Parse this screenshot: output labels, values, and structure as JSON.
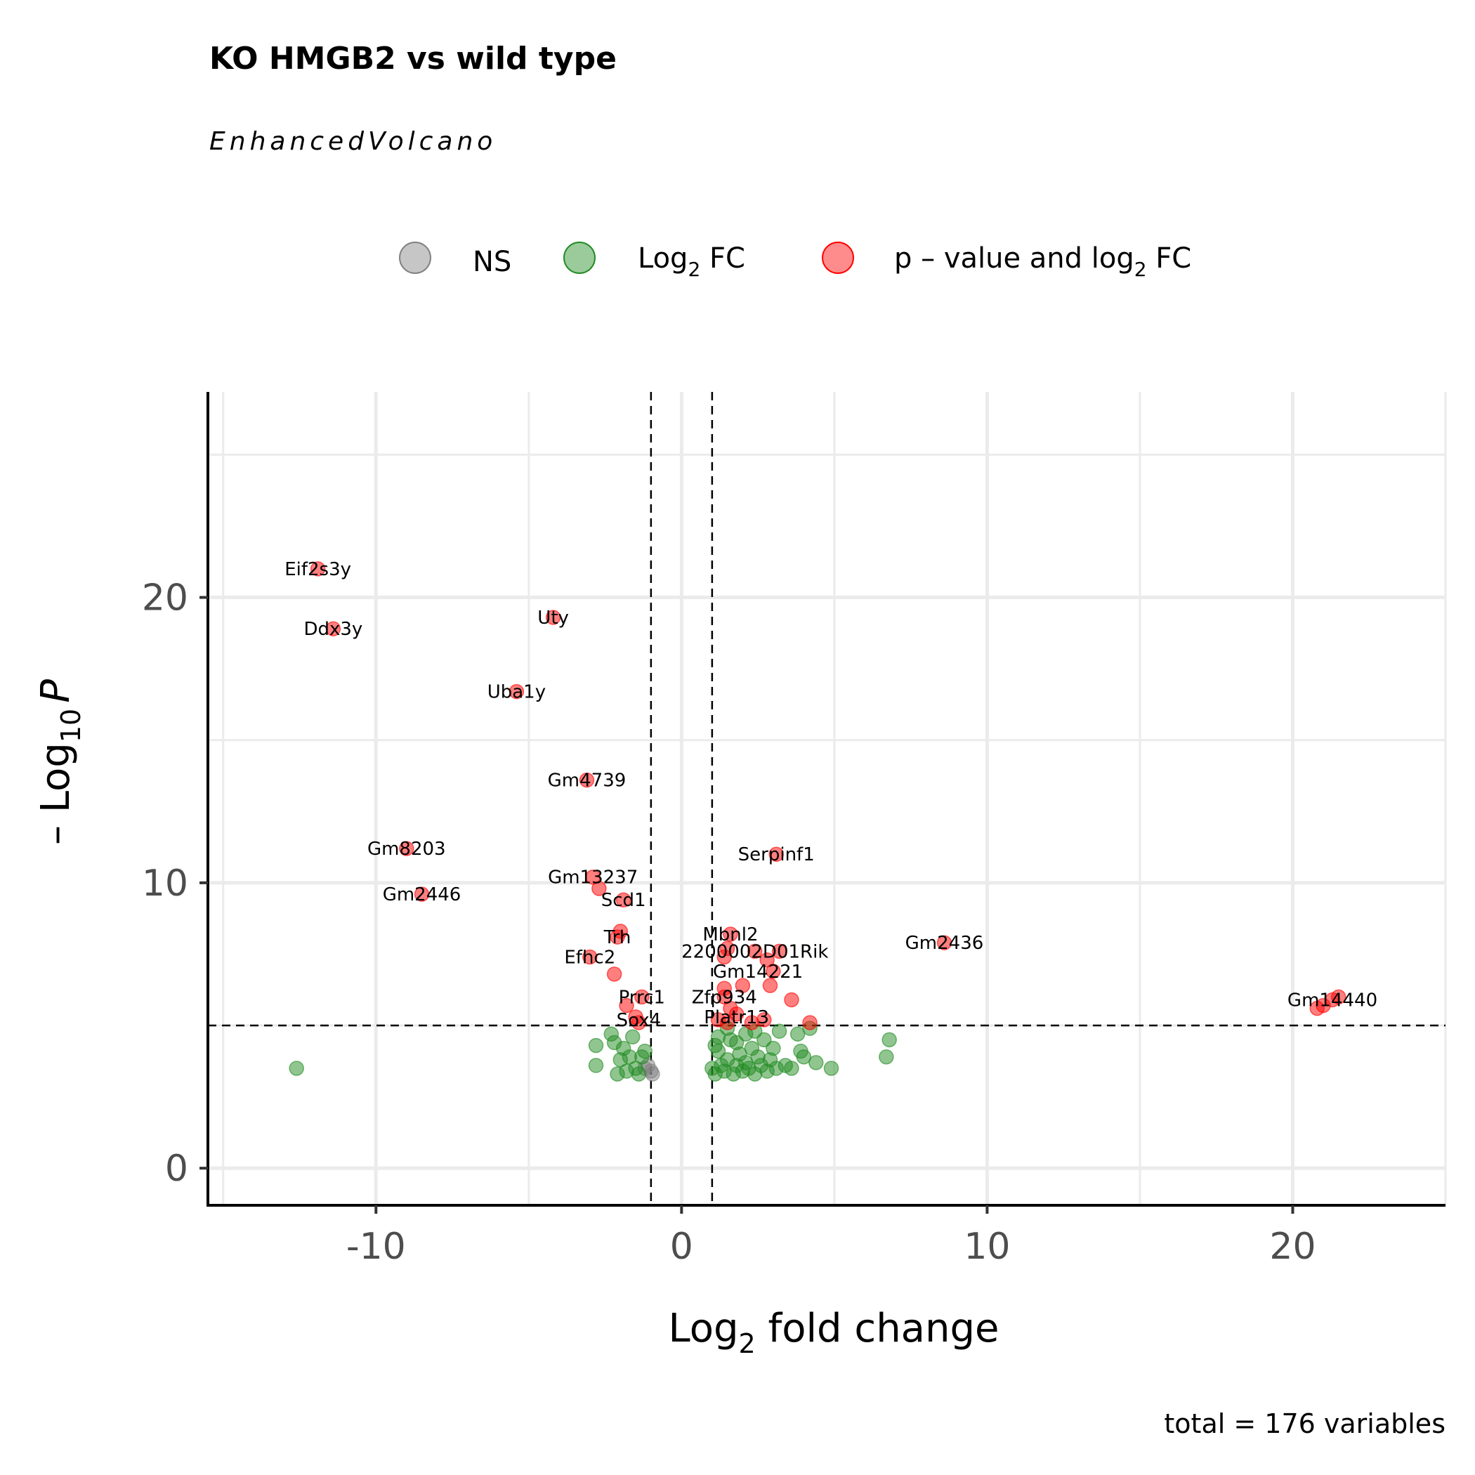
{
  "chart_data": {
    "type": "scatter",
    "title": "KO HMGB2 vs wild type",
    "subtitle": "EnhancedVolcano",
    "caption": "total = 176 variables",
    "xlabel": {
      "main": "Log",
      "sub": "2",
      "rest": " fold change"
    },
    "ylabel": {
      "pre": "– Log",
      "sub": "10",
      "italic": "P"
    },
    "xlim": [
      -15.5,
      25
    ],
    "ylim": [
      -1.3,
      27.2
    ],
    "x_ticks": [
      -10,
      0,
      10,
      20
    ],
    "x_tick_labels": [
      "-10",
      "0",
      "10",
      "20"
    ],
    "y_ticks": [
      0,
      10,
      20
    ],
    "y_tick_labels": [
      "0",
      "10",
      "20"
    ],
    "grid": true,
    "fc_cutoff": 1,
    "p_cutoff_neglog10": 5,
    "legend": {
      "position": "top",
      "items": [
        {
          "name": "NS",
          "color": "#808080"
        },
        {
          "name_parts": [
            "Log",
            "2",
            " FC"
          ],
          "color": "#228B22"
        },
        {
          "name_parts": [
            "p – value and log",
            "2",
            " FC"
          ],
          "color": "#FF0000"
        }
      ]
    },
    "series": [
      {
        "name": "NS",
        "color": "#808080",
        "points": [
          [
            -1,
            3.4
          ],
          [
            -1.1,
            3.6
          ],
          [
            -0.95,
            3.3
          ],
          [
            -1.2,
            3.5
          ]
        ]
      },
      {
        "name": "Log2 FC",
        "color": "#228B22",
        "points": [
          [
            -12.6,
            3.5
          ],
          [
            -2.8,
            4.3
          ],
          [
            -2.8,
            3.6
          ],
          [
            -2.3,
            4.7
          ],
          [
            -2.2,
            4.4
          ],
          [
            -2.0,
            3.8
          ],
          [
            -1.9,
            4.2
          ],
          [
            -1.7,
            3.9
          ],
          [
            -1.6,
            4.6
          ],
          [
            -1.5,
            3.5
          ],
          [
            -1.4,
            3.3
          ],
          [
            -1.3,
            3.9
          ],
          [
            -1.2,
            4.1
          ],
          [
            -2.1,
            3.3
          ],
          [
            -1.8,
            3.4
          ],
          [
            1.0,
            3.5
          ],
          [
            1.1,
            3.3
          ],
          [
            1.2,
            4.1
          ],
          [
            1.3,
            3.6
          ],
          [
            1.4,
            3.4
          ],
          [
            1.5,
            3.8
          ],
          [
            1.6,
            4.5
          ],
          [
            1.7,
            3.3
          ],
          [
            1.8,
            3.6
          ],
          [
            1.9,
            4.0
          ],
          [
            2.0,
            3.4
          ],
          [
            2.1,
            3.7
          ],
          [
            2.2,
            3.5
          ],
          [
            2.3,
            4.2
          ],
          [
            2.4,
            3.3
          ],
          [
            2.5,
            3.9
          ],
          [
            2.6,
            3.6
          ],
          [
            2.7,
            4.5
          ],
          [
            2.8,
            3.4
          ],
          [
            2.9,
            3.8
          ],
          [
            3.0,
            4.2
          ],
          [
            3.1,
            3.5
          ],
          [
            3.2,
            4.8
          ],
          [
            3.4,
            3.6
          ],
          [
            3.6,
            3.5
          ],
          [
            3.8,
            4.7
          ],
          [
            3.9,
            4.1
          ],
          [
            4.0,
            3.9
          ],
          [
            4.2,
            4.9
          ],
          [
            4.4,
            3.7
          ],
          [
            4.9,
            3.5
          ],
          [
            6.8,
            4.5
          ],
          [
            6.7,
            3.9
          ],
          [
            1.2,
            4.6
          ],
          [
            1.5,
            4.9
          ],
          [
            1.8,
            4.4
          ],
          [
            2.1,
            4.7
          ],
          [
            2.4,
            4.8
          ],
          [
            1.1,
            4.3
          ]
        ]
      },
      {
        "name": "p - value and log2 FC",
        "color": "#FF0000",
        "points": [
          [
            -11.9,
            21.0
          ],
          [
            -11.4,
            18.9
          ],
          [
            -4.2,
            19.3
          ],
          [
            -5.4,
            16.7
          ],
          [
            -3.1,
            13.6
          ],
          [
            -9.0,
            11.2
          ],
          [
            -8.5,
            9.6
          ],
          [
            -2.9,
            10.2
          ],
          [
            -2.7,
            9.8
          ],
          [
            -1.9,
            9.4
          ],
          [
            -2.1,
            8.1
          ],
          [
            -2.0,
            8.3
          ],
          [
            -3.0,
            7.4
          ],
          [
            -2.2,
            6.8
          ],
          [
            -1.3,
            6.0
          ],
          [
            -1.5,
            5.3
          ],
          [
            -1.4,
            5.1
          ],
          [
            -1.8,
            5.7
          ],
          [
            1.6,
            8.2
          ],
          [
            1.5,
            7.7
          ],
          [
            1.4,
            7.4
          ],
          [
            2.4,
            7.6
          ],
          [
            3.2,
            7.6
          ],
          [
            2.8,
            7.3
          ],
          [
            3.0,
            6.9
          ],
          [
            2.0,
            6.4
          ],
          [
            2.9,
            6.4
          ],
          [
            3.6,
            5.9
          ],
          [
            1.4,
            6.3
          ],
          [
            1.4,
            6.0
          ],
          [
            1.6,
            5.6
          ],
          [
            1.8,
            5.4
          ],
          [
            1.2,
            5.2
          ],
          [
            1.5,
            5.1
          ],
          [
            2.3,
            5.1
          ],
          [
            2.7,
            5.2
          ],
          [
            4.2,
            5.1
          ],
          [
            3.1,
            11.0
          ],
          [
            8.6,
            7.9
          ],
          [
            20.8,
            5.6
          ],
          [
            21.0,
            5.7
          ],
          [
            21.3,
            5.9
          ],
          [
            21.5,
            6.0
          ]
        ]
      }
    ],
    "labels": [
      {
        "text": "Eif2s3y",
        "x": -11.9,
        "y": 21.0
      },
      {
        "text": "Ddx3y",
        "x": -11.4,
        "y": 18.9
      },
      {
        "text": "Uty",
        "x": -4.2,
        "y": 19.3
      },
      {
        "text": "Uba1y",
        "x": -5.4,
        "y": 16.7
      },
      {
        "text": "Gm4739",
        "x": -3.1,
        "y": 13.6
      },
      {
        "text": "Gm8203",
        "x": -9.0,
        "y": 11.2
      },
      {
        "text": "Gm2446",
        "x": -8.5,
        "y": 9.6
      },
      {
        "text": "Gm13237",
        "x": -2.9,
        "y": 10.2
      },
      {
        "text": "Scd1",
        "x": -1.9,
        "y": 9.4
      },
      {
        "text": "Trh",
        "x": -2.1,
        "y": 8.1
      },
      {
        "text": "Efhc2",
        "x": -3.0,
        "y": 7.4
      },
      {
        "text": "Prrc1",
        "x": -1.3,
        "y": 6.0
      },
      {
        "text": "Sox4",
        "x": -1.4,
        "y": 5.2
      },
      {
        "text": "Serpinf1",
        "x": 3.1,
        "y": 11.0
      },
      {
        "text": "Mbnl2",
        "x": 1.6,
        "y": 8.2
      },
      {
        "text": "2200002D01Rik",
        "x": 2.4,
        "y": 7.6
      },
      {
        "text": "Gm14221",
        "x": 2.5,
        "y": 6.9
      },
      {
        "text": "Zfp934",
        "x": 1.4,
        "y": 6.0
      },
      {
        "text": "Platr13",
        "x": 1.8,
        "y": 5.3
      },
      {
        "text": "Gm2436",
        "x": 8.6,
        "y": 7.9
      },
      {
        "text": "Gm14440",
        "x": 21.3,
        "y": 5.9
      }
    ]
  }
}
